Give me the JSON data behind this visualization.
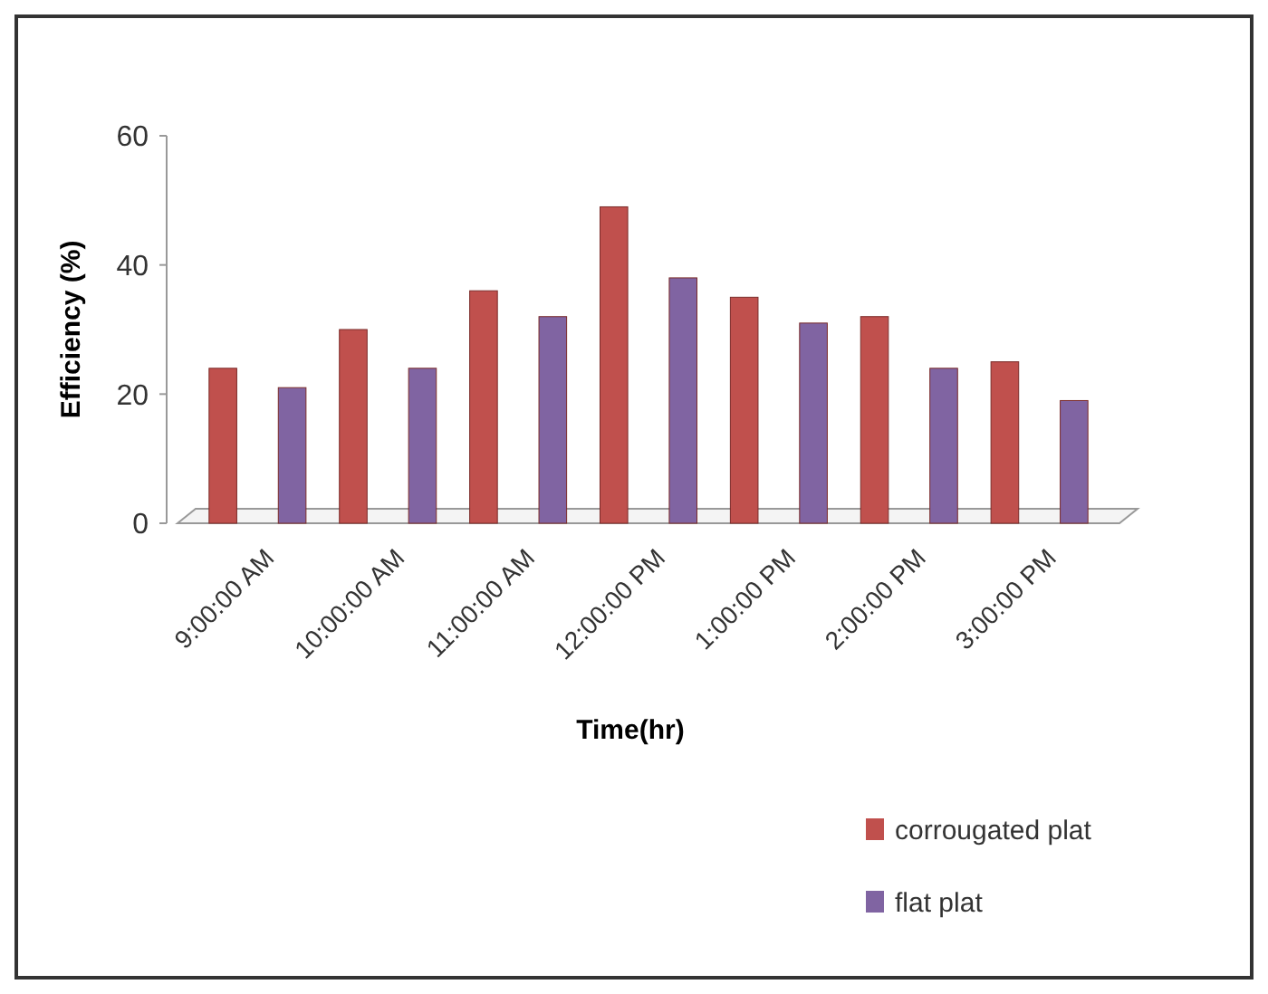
{
  "chart_data": {
    "type": "bar",
    "xlabel": "Time(hr)",
    "ylabel": "Efficiency (%)",
    "categories": [
      "9:00:00 AM",
      "10:00:00 AM",
      "11:00:00 AM",
      "12:00:00 PM",
      "1:00:00 PM",
      "2:00:00 PM",
      "3:00:00 PM"
    ],
    "series": [
      {
        "name": "corrougated plat",
        "color": "#c0504d",
        "values": [
          24,
          30,
          36,
          49,
          35,
          32,
          25
        ]
      },
      {
        "name": "flat plat",
        "color": "#8064a2",
        "values": [
          21,
          24,
          32,
          38,
          31,
          24,
          19
        ]
      }
    ],
    "ylim": [
      0,
      60
    ],
    "yticks": [
      0,
      20,
      40,
      60
    ],
    "grid": false,
    "legend": "bottom right"
  }
}
